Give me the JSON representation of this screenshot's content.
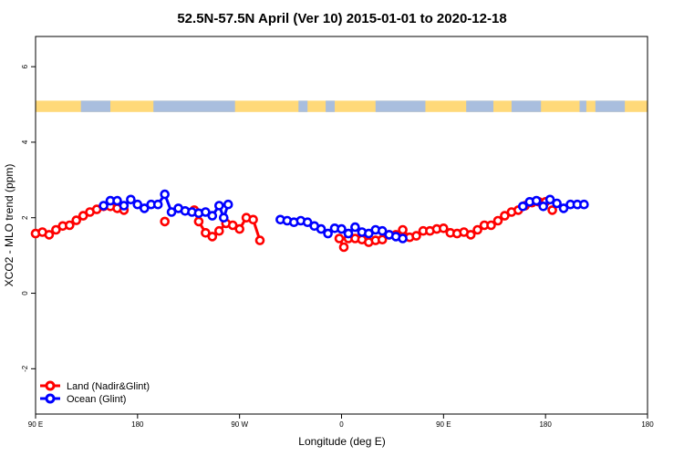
{
  "chart_data": {
    "type": "line",
    "title": "52.5N-57.5N April (Ver 10)   2015-01-01 to 2020-12-18",
    "xlabel": "Longitude (deg E)",
    "ylabel": "XCO2 - MLO trend (ppm)",
    "xlim": [
      -90,
      180
    ],
    "ylim": [
      -3.2,
      6.8
    ],
    "x_ticks": [
      {
        "value": -90,
        "label": "90 E"
      },
      {
        "value": -45,
        "label": "180"
      },
      {
        "value": 0,
        "label": "90 W"
      },
      {
        "value": 45,
        "label": "0"
      },
      {
        "value": 90,
        "label": "90 E"
      },
      {
        "value": 135,
        "label": "180"
      }
    ],
    "y_ticks": [
      {
        "value": -2,
        "label": "-2"
      },
      {
        "value": 0,
        "label": "0"
      },
      {
        "value": 2,
        "label": "2"
      },
      {
        "value": 4,
        "label": "4"
      },
      {
        "value": 6,
        "label": "6"
      }
    ],
    "land_ocean_band": {
      "y_bottom": 4.8,
      "y_top": 5.1,
      "land_color": "#ffd979",
      "ocean_color": "#a9bede"
    },
    "legend_position": "bottom-left",
    "grid": false,
    "series": [
      {
        "name": "Land (Nadir&Glint)",
        "color": "#ff0000",
        "segments": [
          [
            [
              -90,
              1.58
            ],
            [
              -87,
              1.62
            ],
            [
              -84,
              1.55
            ],
            [
              -81,
              1.68
            ],
            [
              -78,
              1.78
            ],
            [
              -75,
              1.8
            ],
            [
              -72,
              1.93
            ],
            [
              -69,
              2.05
            ],
            [
              -66,
              2.15
            ],
            [
              -63,
              2.22
            ],
            [
              -60,
              2.3
            ],
            [
              -57,
              2.3
            ],
            [
              -54,
              2.25
            ],
            [
              -51,
              2.2
            ]
          ],
          [
            [
              -78,
              1.78
            ],
            [
              -75,
              1.8
            ]
          ],
          [
            [
              -63,
              2.22
            ],
            [
              -60,
              2.3
            ]
          ],
          [
            [
              -78,
              1.78
            ],
            [
              -75,
              1.8
            ]
          ]
        ],
        "segments_note": "",
        "points": [
          [
            -90,
            1.58
          ],
          [
            -87,
            1.62
          ],
          [
            -84,
            1.55
          ],
          [
            -81,
            1.68
          ],
          [
            -78,
            1.78
          ],
          [
            -75,
            1.8
          ],
          [
            -72,
            1.93
          ],
          [
            -69,
            2.05
          ],
          [
            -66,
            2.15
          ],
          [
            -63,
            2.22
          ],
          [
            -60,
            2.3
          ],
          [
            -57,
            2.3
          ],
          [
            -54,
            2.25
          ],
          [
            -51,
            2.2
          ],
          [
            -33,
            1.9
          ],
          [
            -20,
            2.2
          ],
          [
            -18,
            1.9
          ],
          [
            -15,
            1.6
          ],
          [
            -12,
            1.5
          ],
          [
            -9,
            1.65
          ],
          [
            -6,
            1.85
          ],
          [
            -3,
            1.8
          ],
          [
            0,
            1.7
          ],
          [
            3,
            2.0
          ],
          [
            6,
            1.95
          ],
          [
            9,
            1.4
          ],
          [
            44,
            1.45
          ],
          [
            46,
            1.22
          ],
          [
            48,
            1.45
          ],
          [
            51,
            1.45
          ],
          [
            54,
            1.42
          ],
          [
            57,
            1.35
          ],
          [
            60,
            1.4
          ],
          [
            63,
            1.42
          ],
          [
            66,
            1.55
          ],
          [
            69,
            1.55
          ],
          [
            72,
            1.68
          ],
          [
            75,
            1.48
          ],
          [
            78,
            1.52
          ],
          [
            81,
            1.65
          ],
          [
            84,
            1.65
          ],
          [
            87,
            1.7
          ],
          [
            90,
            1.72
          ],
          [
            93,
            1.6
          ],
          [
            96,
            1.58
          ],
          [
            99,
            1.62
          ],
          [
            102,
            1.55
          ],
          [
            105,
            1.68
          ],
          [
            108,
            1.8
          ],
          [
            111,
            1.8
          ],
          [
            114,
            1.92
          ],
          [
            117,
            2.05
          ],
          [
            120,
            2.15
          ],
          [
            123,
            2.2
          ],
          [
            126,
            2.32
          ],
          [
            129,
            2.4
          ],
          [
            132,
            2.42
          ],
          [
            135,
            2.42
          ],
          [
            138,
            2.2
          ]
        ],
        "lines": [
          [
            [
              -90,
              1.58
            ],
            [
              -87,
              1.62
            ],
            [
              -84,
              1.55
            ],
            [
              -81,
              1.68
            ],
            [
              -78,
              1.78
            ],
            [
              -75,
              1.8
            ],
            [
              -72,
              1.93
            ],
            [
              -69,
              2.05
            ],
            [
              -66,
              2.15
            ],
            [
              -63,
              2.22
            ],
            [
              -60,
              2.3
            ],
            [
              -57,
              2.3
            ],
            [
              -54,
              2.25
            ]
          ],
          [
            [
              -20,
              2.2
            ],
            [
              -18,
              1.9
            ],
            [
              -15,
              1.6
            ],
            [
              -12,
              1.5
            ],
            [
              -9,
              1.65
            ],
            [
              -6,
              1.85
            ],
            [
              -3,
              1.8
            ],
            [
              0,
              1.7
            ],
            [
              3,
              2.0
            ],
            [
              6,
              1.95
            ],
            [
              9,
              1.4
            ]
          ],
          [
            [
              44,
              1.45
            ],
            [
              46,
              1.22
            ]
          ],
          [
            [
              51,
              1.45
            ],
            [
              54,
              1.42
            ],
            [
              57,
              1.35
            ],
            [
              60,
              1.4
            ],
            [
              63,
              1.42
            ],
            [
              66,
              1.55
            ],
            [
              69,
              1.55
            ],
            [
              72,
              1.68
            ],
            [
              75,
              1.48
            ],
            [
              78,
              1.52
            ],
            [
              81,
              1.65
            ],
            [
              84,
              1.65
            ],
            [
              87,
              1.7
            ],
            [
              90,
              1.72
            ],
            [
              93,
              1.6
            ],
            [
              96,
              1.58
            ],
            [
              99,
              1.62
            ],
            [
              102,
              1.55
            ],
            [
              105,
              1.68
            ],
            [
              108,
              1.8
            ],
            [
              111,
              1.8
            ],
            [
              114,
              1.92
            ],
            [
              117,
              2.05
            ],
            [
              120,
              2.15
            ],
            [
              123,
              2.2
            ],
            [
              126,
              2.32
            ],
            [
              129,
              2.4
            ],
            [
              132,
              2.42
            ],
            [
              135,
              2.42
            ]
          ]
        ]
      },
      {
        "name": "Ocean (Glint)",
        "color": "#0000ff",
        "points": [
          [
            -60,
            2.32
          ],
          [
            -57,
            2.45
          ],
          [
            -54,
            2.45
          ],
          [
            -51,
            2.32
          ],
          [
            -48,
            2.48
          ],
          [
            -45,
            2.35
          ],
          [
            -42,
            2.25
          ],
          [
            -39,
            2.35
          ],
          [
            -36,
            2.35
          ],
          [
            -33,
            2.62
          ],
          [
            -30,
            2.15
          ],
          [
            -27,
            2.25
          ],
          [
            -24,
            2.18
          ],
          [
            -21,
            2.15
          ],
          [
            -18,
            2.12
          ],
          [
            -15,
            2.15
          ],
          [
            -12,
            2.05
          ],
          [
            -9,
            2.32
          ],
          [
            -7,
            2.0
          ],
          [
            -5,
            2.35
          ],
          [
            18,
            1.95
          ],
          [
            21,
            1.92
          ],
          [
            24,
            1.88
          ],
          [
            27,
            1.92
          ],
          [
            30,
            1.88
          ],
          [
            33,
            1.78
          ],
          [
            36,
            1.7
          ],
          [
            39,
            1.58
          ],
          [
            42,
            1.72
          ],
          [
            45,
            1.7
          ],
          [
            48,
            1.58
          ],
          [
            51,
            1.75
          ],
          [
            54,
            1.62
          ],
          [
            57,
            1.58
          ],
          [
            60,
            1.68
          ],
          [
            63,
            1.65
          ],
          [
            66,
            1.55
          ],
          [
            69,
            1.5
          ],
          [
            72,
            1.45
          ],
          [
            125,
            2.3
          ],
          [
            128,
            2.42
          ],
          [
            131,
            2.45
          ],
          [
            134,
            2.3
          ],
          [
            137,
            2.48
          ],
          [
            140,
            2.38
          ],
          [
            143,
            2.25
          ],
          [
            146,
            2.35
          ],
          [
            149,
            2.35
          ],
          [
            152,
            2.35
          ]
        ],
        "lines": [
          [
            [
              -60,
              2.32
            ],
            [
              -57,
              2.45
            ],
            [
              -54,
              2.45
            ],
            [
              -51,
              2.32
            ],
            [
              -48,
              2.48
            ],
            [
              -45,
              2.35
            ],
            [
              -42,
              2.25
            ],
            [
              -39,
              2.35
            ],
            [
              -36,
              2.35
            ],
            [
              -33,
              2.62
            ],
            [
              -30,
              2.15
            ],
            [
              -27,
              2.25
            ],
            [
              -24,
              2.18
            ],
            [
              -21,
              2.15
            ],
            [
              -18,
              2.12
            ],
            [
              -15,
              2.15
            ],
            [
              -12,
              2.05
            ],
            [
              -9,
              2.32
            ],
            [
              -7,
              2.0
            ],
            [
              -5,
              2.35
            ]
          ],
          [
            [
              18,
              1.95
            ],
            [
              21,
              1.92
            ],
            [
              24,
              1.88
            ],
            [
              27,
              1.92
            ],
            [
              30,
              1.88
            ],
            [
              33,
              1.78
            ],
            [
              36,
              1.7
            ],
            [
              39,
              1.58
            ],
            [
              42,
              1.72
            ],
            [
              45,
              1.7
            ],
            [
              48,
              1.58
            ],
            [
              51,
              1.75
            ],
            [
              54,
              1.62
            ],
            [
              57,
              1.58
            ],
            [
              60,
              1.68
            ],
            [
              63,
              1.65
            ],
            [
              66,
              1.55
            ],
            [
              69,
              1.5
            ],
            [
              72,
              1.45
            ]
          ],
          [
            [
              125,
              2.3
            ],
            [
              128,
              2.42
            ],
            [
              131,
              2.45
            ],
            [
              134,
              2.3
            ],
            [
              137,
              2.48
            ],
            [
              140,
              2.38
            ],
            [
              143,
              2.25
            ],
            [
              146,
              2.35
            ],
            [
              149,
              2.35
            ],
            [
              152,
              2.35
            ]
          ]
        ]
      }
    ]
  }
}
